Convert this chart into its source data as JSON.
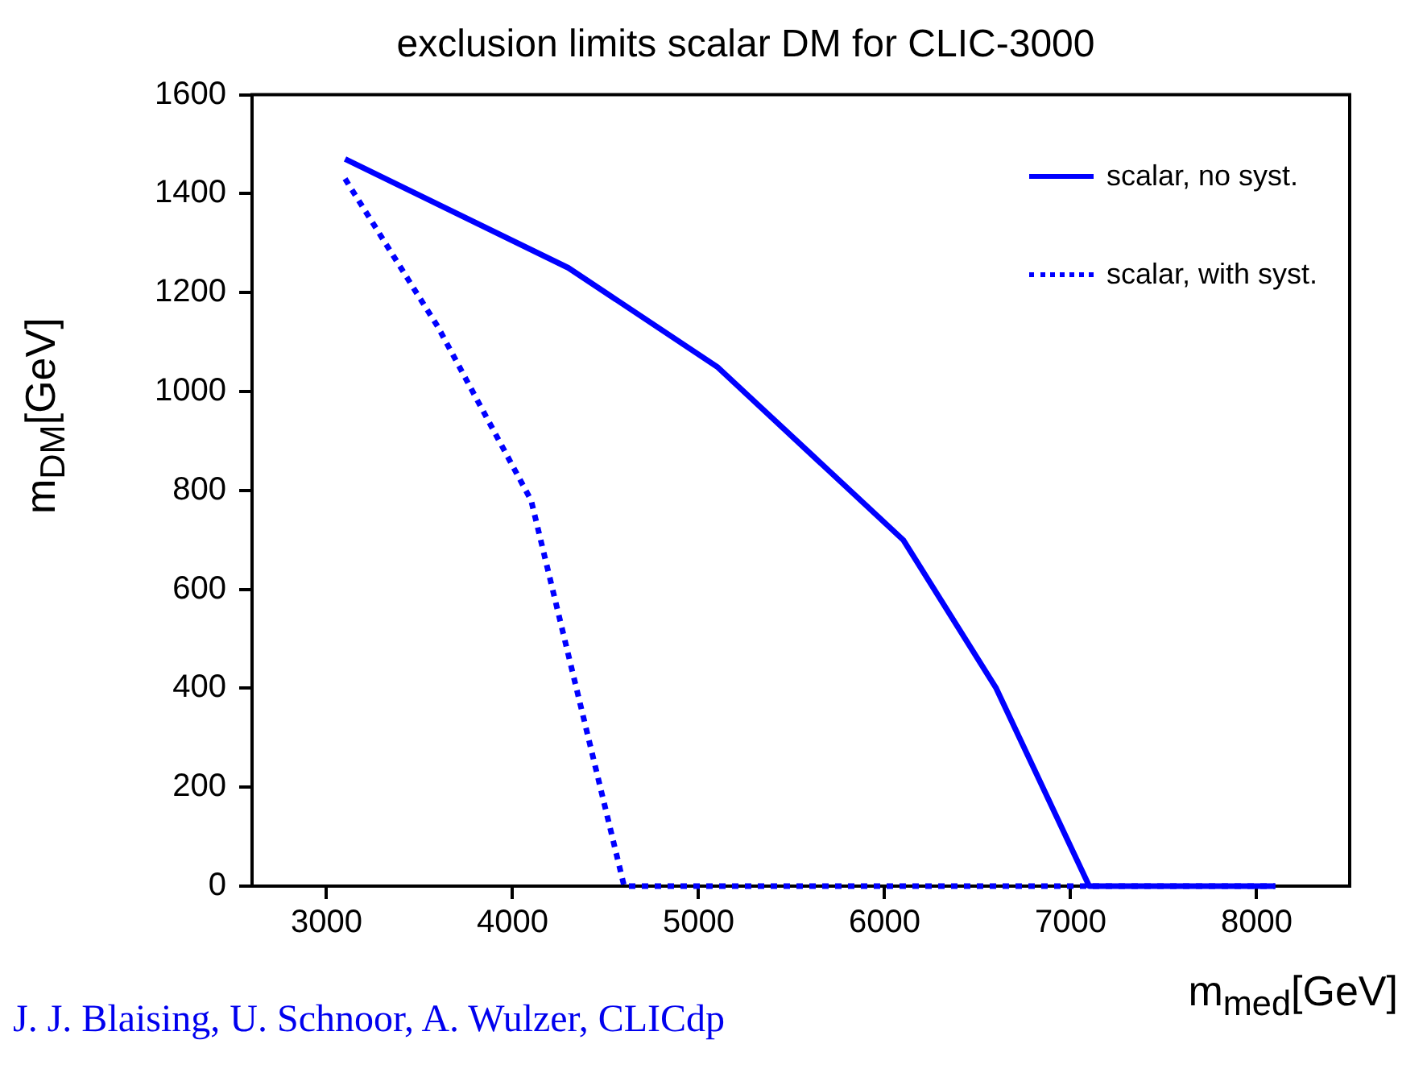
{
  "chart_data": {
    "type": "line",
    "title": "exclusion limits scalar DM for CLIC-3000",
    "xlabel": "m$_{med}$[GeV]",
    "ylabel": "m$_{DM}$[GeV]",
    "annotations": [
      "J. J. Blaising, U. Schnoor, A. Wulzer, CLICdp"
    ],
    "series": [
      {
        "name": "scalar, no syst.",
        "color": "#0000ff",
        "line_style": "solid",
        "x": [
          3100,
          4300,
          5100,
          6100,
          6600,
          7100,
          8100
        ],
        "values": [
          1470,
          1250,
          1050,
          700,
          400,
          0,
          0
        ]
      },
      {
        "name": "scalar, with syst.",
        "color": "#0000ff",
        "line_style": "dotted",
        "x": [
          3100,
          3600,
          4100,
          4600,
          8100
        ],
        "values": [
          1430,
          1130,
          780,
          0,
          0
        ]
      }
    ],
    "xlim": [
      2600,
      8500
    ],
    "xticks": [
      3000,
      4000,
      5000,
      6000,
      7000,
      8000
    ],
    "ylim": [
      0,
      1600
    ],
    "yticks": [
      0,
      200,
      400,
      600,
      800,
      1000,
      1200,
      1400,
      1600
    ],
    "grid": false,
    "legend": "top right",
    "marker": "none"
  }
}
